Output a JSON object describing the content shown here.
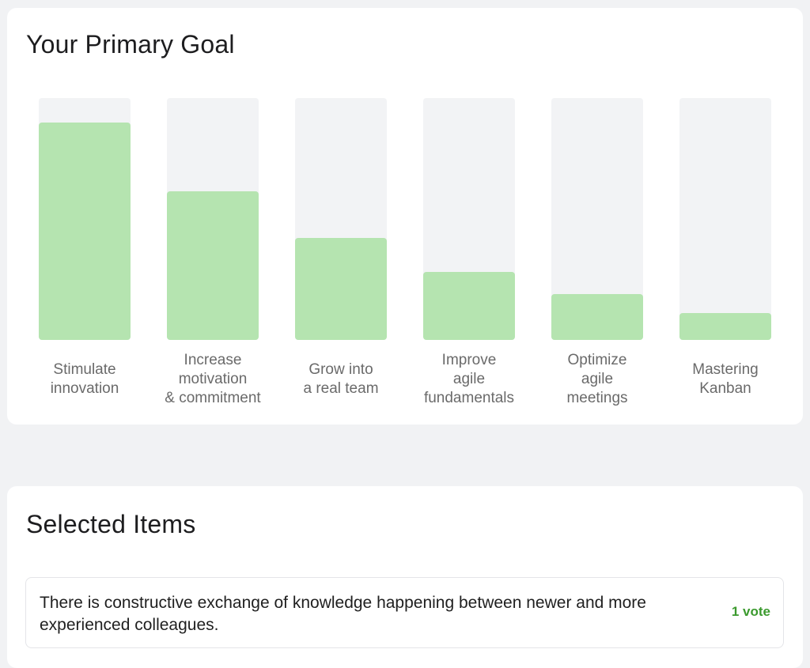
{
  "goal_card": {
    "title": "Your Primary Goal"
  },
  "chart_data": {
    "type": "bar",
    "categories": [
      "Stimulate\ninnovation",
      "Increase\nmotivation\n& commitment",
      "Grow into\na real team",
      "Improve\nagile\nfundamentals",
      "Optimize\nagile\nmeetings",
      "Mastering\nKanban"
    ],
    "values": [
      0.9,
      0.615,
      0.42,
      0.28,
      0.19,
      0.11
    ],
    "ylim": [
      0,
      1
    ],
    "grid": false,
    "colors": {
      "fill": "#b5e4b0",
      "track": "#f2f3f5"
    }
  },
  "items_card": {
    "title": "Selected Items",
    "items": [
      {
        "text": "There is constructive exchange of knowledge happening between newer and more experienced colleagues.",
        "votes": "1 vote"
      }
    ]
  }
}
